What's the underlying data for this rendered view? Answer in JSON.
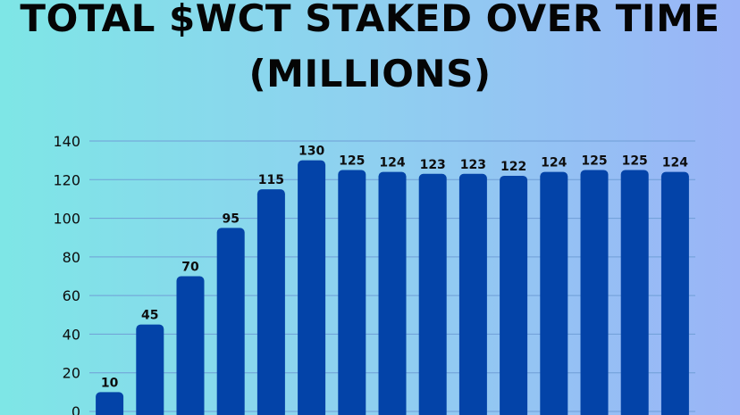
{
  "title_line1": "TOTAL $WCT STAKED OVER TIME",
  "title_line2": "(MILLIONS)",
  "chart_data": {
    "type": "bar",
    "title": "TOTAL $WCT STAKED OVER TIME (MILLIONS)",
    "values": [
      10,
      45,
      70,
      95,
      115,
      130,
      125,
      124,
      123,
      123,
      122,
      124,
      125,
      125,
      124
    ],
    "data_labels": [
      "10",
      "45",
      "70",
      "95",
      "115",
      "130",
      "125",
      "124",
      "123",
      "123",
      "122",
      "124",
      "125",
      "125",
      "124"
    ],
    "ylim": [
      0,
      140
    ],
    "yticks": [
      0,
      20,
      40,
      60,
      80,
      100,
      120,
      140
    ],
    "grid": true,
    "bar_color": "#0343a8",
    "grid_color": "#6f9ed6",
    "text_color": "#0d0d0d"
  }
}
